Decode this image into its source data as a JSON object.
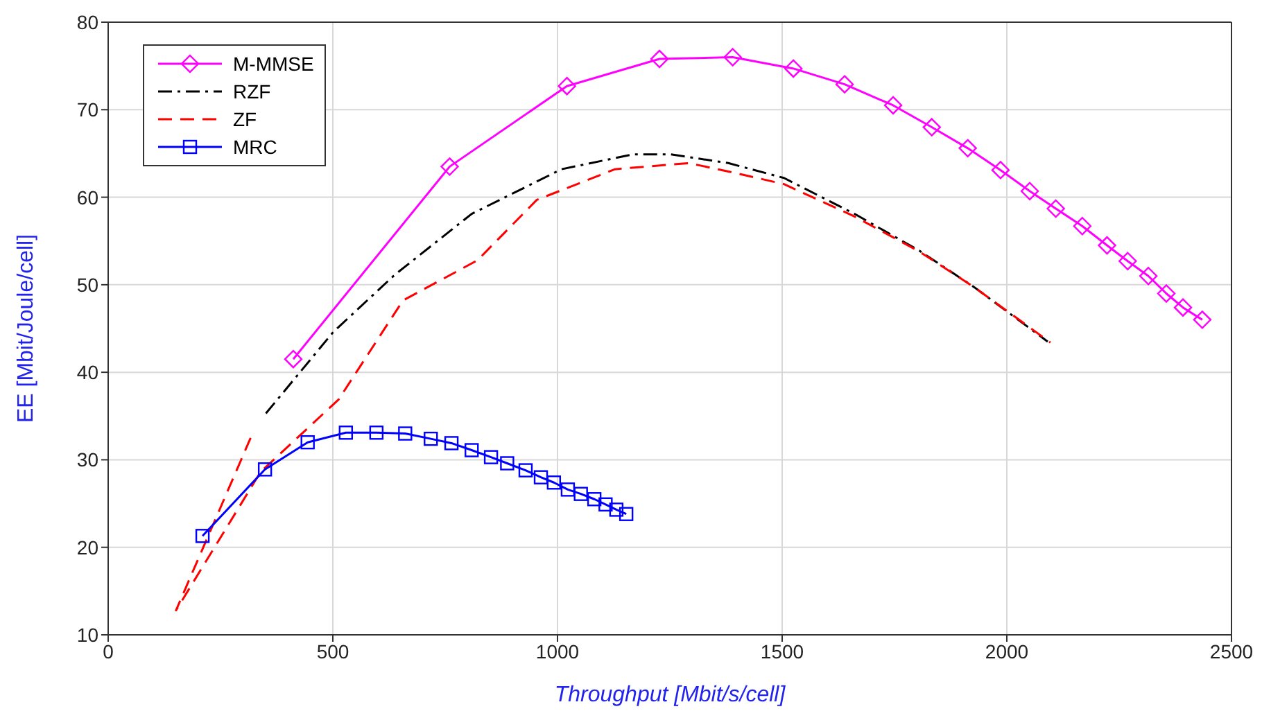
{
  "chart_data": {
    "type": "line",
    "xlabel": "Throughput [Mbit/s/cell]",
    "ylabel": "EE [Mbit/Joule/cell]",
    "xlim": [
      0,
      2500
    ],
    "xticks": [
      0,
      500,
      1000,
      1500,
      2000,
      2500
    ],
    "ylim": [
      10,
      80
    ],
    "yticks": [
      10,
      20,
      30,
      40,
      50,
      60,
      70,
      80
    ],
    "grid": true,
    "legend": "top left",
    "series": [
      {
        "name": "M-MMSE",
        "color": "#ff00ff",
        "marker": "diamond",
        "line_style": "solid",
        "x": [
          412,
          760,
          1021,
          1227,
          1390,
          1525,
          1639,
          1747,
          1833,
          1913,
          1986,
          2051,
          2109,
          2168,
          2223,
          2269,
          2315,
          2355,
          2392,
          2435
        ],
        "values": [
          41.5,
          63.5,
          72.7,
          75.8,
          76.0,
          74.7,
          72.9,
          70.5,
          68.0,
          65.6,
          63.1,
          60.7,
          58.7,
          56.7,
          54.5,
          52.7,
          51.0,
          49.0,
          47.4,
          46.0
        ]
      },
      {
        "name": "RZF",
        "color": "#000000",
        "marker": "none",
        "line_style": "dashdot",
        "x": [
          351,
          501,
          637,
          809,
          1009,
          1168,
          1252,
          1380,
          1504,
          1661,
          1805,
          1928,
          2091
        ],
        "values": [
          35.3,
          44.6,
          51.1,
          58.1,
          63.2,
          64.9,
          64.9,
          63.9,
          62.2,
          58.1,
          53.9,
          49.7,
          43.5
        ]
      },
      {
        "name": "ZF",
        "color": "#ff0000",
        "marker": "none",
        "line_style": "dashed",
        "x": [
          317,
          151,
          339,
          513,
          656,
          822,
          954,
          1009,
          1128,
          1292,
          1384,
          1504,
          1661,
          1805,
          1928,
          2097
        ],
        "values": [
          32.5,
          12.8,
          28.6,
          36.9,
          48.2,
          52.8,
          59.7,
          60.8,
          63.2,
          63.9,
          62.9,
          61.5,
          57.8,
          53.8,
          49.7,
          43.4
        ]
      },
      {
        "name": "MRC",
        "color": "#0000ff",
        "marker": "square",
        "line_style": "solid",
        "x": [
          210,
          349,
          444,
          529,
          597,
          661,
          718,
          764,
          809,
          852,
          888,
          929,
          963,
          992,
          1023,
          1052,
          1082,
          1107,
          1131,
          1153
        ],
        "values": [
          21.3,
          28.9,
          32.0,
          33.1,
          33.1,
          33.0,
          32.4,
          31.9,
          31.1,
          30.3,
          29.6,
          28.8,
          28.0,
          27.4,
          26.6,
          26.1,
          25.5,
          24.9,
          24.3,
          23.8
        ]
      }
    ]
  }
}
